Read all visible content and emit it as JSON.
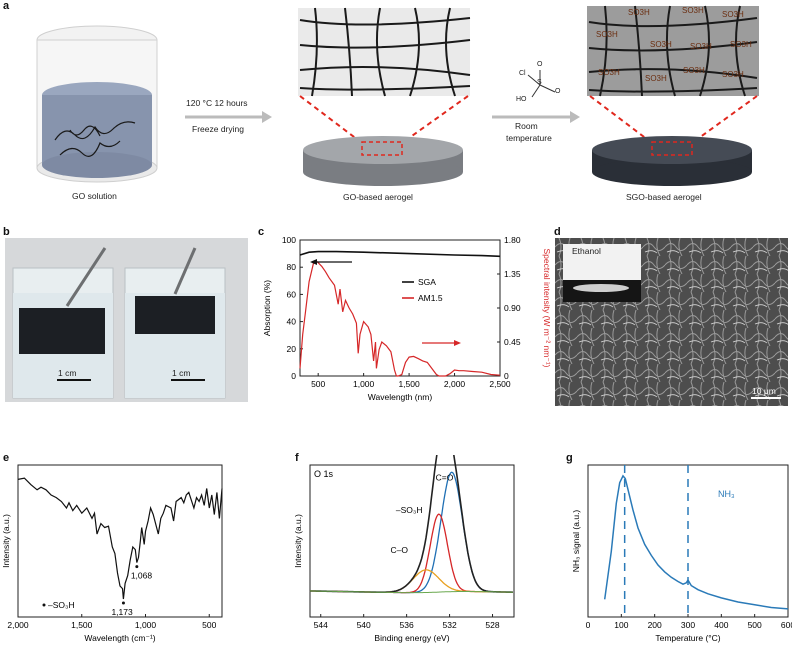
{
  "panels": {
    "a": {
      "letter": "a",
      "go_solution": "GO solution",
      "step1_line1": "120 °C 12 hours",
      "step1_line2": "Freeze drying",
      "go_aerogel": "GO-based aerogel",
      "step2_line1": "Room",
      "step2_line2": "temperature",
      "sgo_aerogel": "SGO-based aerogel",
      "reagent_cl": "Cl",
      "reagent_s": "S",
      "reagent_o": "O",
      "reagent_ho": "HO",
      "so3h": "SO3H",
      "colors": {
        "go_disk": "#8c8f93",
        "sgo_disk": "#353b44",
        "sheet_go": "#e6e6e6",
        "sheet_sgo": "#9a9a9a",
        "dash": "#e0281e"
      }
    },
    "b": {
      "letter": "b",
      "scale_left": "1 cm",
      "scale_right": "1 cm"
    },
    "c": {
      "letter": "c",
      "chart_data": {
        "type": "line",
        "xlabel": "Wavelength (nm)",
        "ylabel_left": "Absorption (%)",
        "ylabel_right": "Spectral intensity (W m⁻² nm⁻¹)",
        "xlim": [
          300,
          2500
        ],
        "ylim_left": [
          0,
          100
        ],
        "ylim_right": [
          0,
          1.8
        ],
        "x_ticks": [
          "500",
          "1,000",
          "1,500",
          "2,000",
          "2,500"
        ],
        "y_left_ticks": [
          "0",
          "20",
          "40",
          "60",
          "80",
          "100"
        ],
        "y_right_ticks": [
          "0",
          "0.45",
          "0.90",
          "1.35",
          "1.80"
        ],
        "legend": [
          "SGA",
          "AM1.5"
        ],
        "series": [
          {
            "name": "SGA",
            "axis": "left",
            "color": "#111111",
            "x": [
              300,
              400,
              500,
              700,
              1000,
              1500,
              2000,
              2300,
              2500
            ],
            "y": [
              89,
              91,
              91.5,
              91.5,
              91,
              90,
              89,
              88.5,
              88
            ]
          },
          {
            "name": "AM1.5",
            "axis": "right",
            "color": "#d62728",
            "x": [
              300,
              330,
              360,
              400,
              450,
              480,
              500,
              540,
              580,
              620,
              680,
              720,
              740,
              770,
              800,
              840,
              880,
              920,
              940,
              960,
              1000,
              1050,
              1080,
              1110,
              1130,
              1140,
              1170,
              1200,
              1250,
              1300,
              1340,
              1360,
              1380,
              1420,
              1460,
              1500,
              1550,
              1600,
              1650,
              1700,
              1750,
              1800,
              1830,
              1850,
              1900,
              1950,
              2000,
              2050,
              2100,
              2200,
              2300,
              2400,
              2500
            ],
            "y": [
              0.1,
              0.55,
              0.85,
              1.25,
              1.5,
              1.52,
              1.5,
              1.45,
              1.38,
              1.3,
              1.2,
              0.95,
              1.15,
              0.85,
              1.0,
              0.9,
              0.82,
              0.7,
              0.3,
              0.55,
              0.72,
              0.65,
              0.55,
              0.2,
              0.45,
              0.1,
              0.35,
              0.45,
              0.4,
              0.32,
              0.08,
              0.0,
              0.0,
              0.02,
              0.18,
              0.25,
              0.26,
              0.23,
              0.2,
              0.18,
              0.1,
              0.02,
              0.0,
              0.0,
              0.0,
              0.03,
              0.08,
              0.07,
              0.07,
              0.06,
              0.05,
              0.02,
              0.01
            ]
          }
        ]
      }
    },
    "d": {
      "letter": "d",
      "inset_label": "Ethanol",
      "scale": "10 μm"
    },
    "e": {
      "letter": "e",
      "chart_data": {
        "type": "line",
        "xlabel": "Wavelength (cm⁻¹)",
        "ylabel": "Intensity (a.u.)",
        "xlim": [
          2000,
          400
        ],
        "x_ticks": [
          "2,000",
          "1,500",
          "1,000",
          "500"
        ],
        "peak_labels": [
          "1,068",
          "1,173"
        ],
        "legend": "–SO₃H",
        "series": [
          {
            "name": "FTIR",
            "color": "#111111",
            "x": [
              2000,
              1950,
              1900,
              1850,
              1820,
              1780,
              1740,
              1700,
              1660,
              1620,
              1600,
              1570,
              1540,
              1500,
              1460,
              1420,
              1400,
              1380,
              1350,
              1320,
              1290,
              1260,
              1240,
              1220,
              1200,
              1180,
              1173,
              1160,
              1140,
              1120,
              1100,
              1080,
              1068,
              1055,
              1040,
              1030,
              1010,
              1000,
              980,
              960,
              940,
              900,
              880,
              860,
              840,
              800,
              780,
              760,
              720,
              700,
              680,
              660,
              620,
              600,
              580,
              560,
              540,
              520,
              500,
              480,
              460,
              440,
              420,
              400
            ],
            "y": [
              0.92,
              0.93,
              0.88,
              0.84,
              0.86,
              0.84,
              0.8,
              0.78,
              0.75,
              0.7,
              0.74,
              0.68,
              0.72,
              0.66,
              0.7,
              0.62,
              0.66,
              0.5,
              0.58,
              0.55,
              0.56,
              0.4,
              0.35,
              0.2,
              0.1,
              0.08,
              0.0,
              0.12,
              0.18,
              0.3,
              0.4,
              0.38,
              0.28,
              0.32,
              0.45,
              0.55,
              0.42,
              0.52,
              0.6,
              0.7,
              0.65,
              0.5,
              0.62,
              0.66,
              0.72,
              0.7,
              0.6,
              0.75,
              0.78,
              0.74,
              0.8,
              0.82,
              0.7,
              0.78,
              0.75,
              0.8,
              0.72,
              0.85,
              0.7,
              0.8,
              0.65,
              0.82,
              0.62,
              0.85
            ]
          }
        ]
      }
    },
    "f": {
      "letter": "f",
      "title": "O 1s",
      "chart_data": {
        "type": "line",
        "xlabel": "Binding energy (eV)",
        "ylabel": "Intensity (a.u.)",
        "xlim": [
          545,
          526
        ],
        "x_ticks": [
          "544",
          "540",
          "536",
          "532",
          "528"
        ],
        "annotations": [
          "C=O",
          "–SO₃H",
          "C–O"
        ],
        "series": [
          {
            "name": "C=O",
            "color": "#1f6fb4",
            "center": 531.8,
            "height": 0.95,
            "width": 1.0
          },
          {
            "name": "–SO₃H",
            "color": "#d62728",
            "center": 533.0,
            "height": 0.62,
            "width": 0.8
          },
          {
            "name": "C–O",
            "color": "#e8a020",
            "center": 534.2,
            "height": 0.18,
            "width": 1.2
          },
          {
            "name": "envelope",
            "color": "#222222"
          },
          {
            "name": "background",
            "color": "#6aa84f"
          }
        ]
      }
    },
    "g": {
      "letter": "g",
      "label": "NH₃",
      "chart_data": {
        "type": "line",
        "xlabel": "Temperature (°C)",
        "ylabel": "NH₃ signal (a.u.)",
        "xlim": [
          0,
          600
        ],
        "x_ticks": [
          "0",
          "100",
          "200",
          "300",
          "400",
          "500",
          "600"
        ],
        "dashed_lines": [
          110,
          300
        ],
        "series": [
          {
            "name": "NH3",
            "color": "#2a7ab8",
            "x": [
              50,
              70,
              85,
              95,
              105,
              112,
              120,
              135,
              150,
              170,
              190,
              210,
              230,
              250,
              270,
              285,
              295,
              300,
              310,
              330,
              360,
              400,
              450,
              500,
              550,
              600
            ],
            "y": [
              0.1,
              0.45,
              0.8,
              0.95,
              1.0,
              0.98,
              0.9,
              0.75,
              0.62,
              0.5,
              0.42,
              0.35,
              0.3,
              0.26,
              0.23,
              0.21,
              0.22,
              0.24,
              0.2,
              0.17,
              0.14,
              0.11,
              0.08,
              0.06,
              0.04,
              0.03
            ]
          }
        ]
      }
    }
  }
}
